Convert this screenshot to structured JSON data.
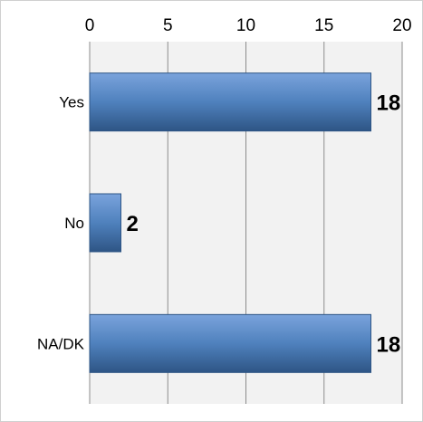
{
  "chart_data": {
    "type": "bar",
    "orientation": "horizontal",
    "categories": [
      "Yes",
      "No",
      "NA/DK"
    ],
    "values": [
      18,
      2,
      18
    ],
    "data_labels": [
      "18",
      "2",
      "18"
    ],
    "xlim": [
      0,
      20
    ],
    "x_ticks": [
      "0",
      "5",
      "10",
      "15",
      "20"
    ],
    "x_axis_position": "top",
    "grid": true,
    "legend": "none",
    "colors": {
      "bar_fill": "#4f81bd",
      "bar_light": "#7aa3dc",
      "bar_edge": "#2e5585",
      "plot_bg": "#f2f2f2",
      "grid": "#8c8c8c"
    }
  }
}
